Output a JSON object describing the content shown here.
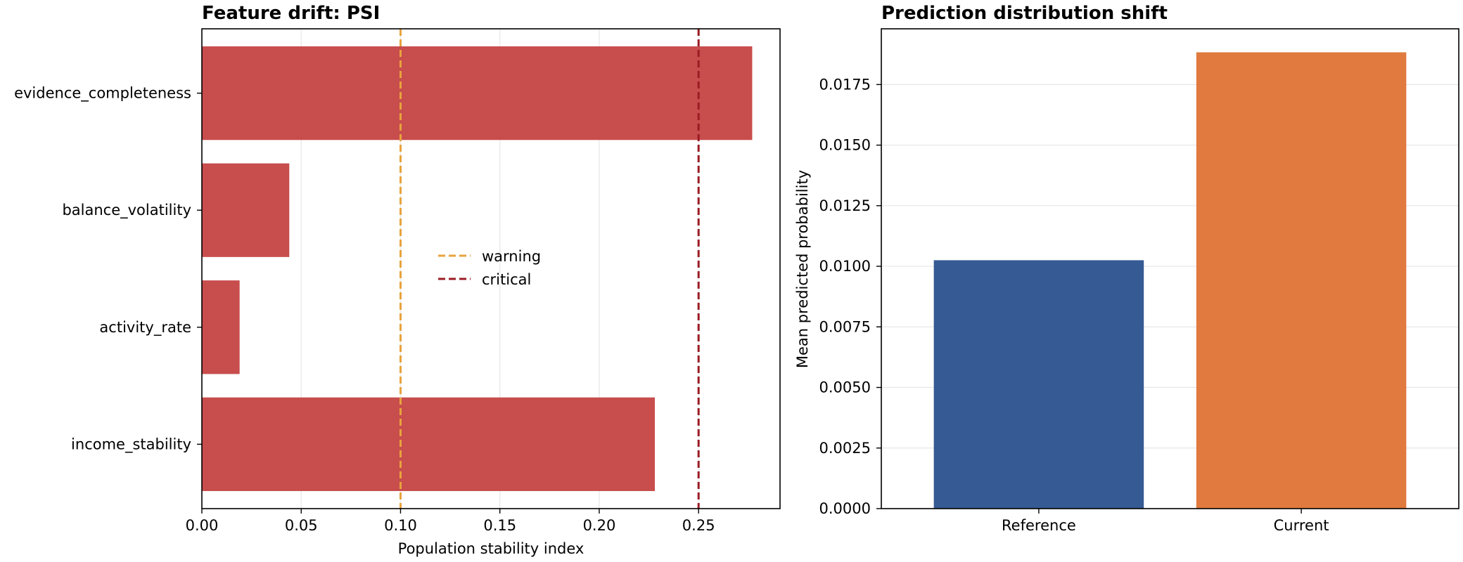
{
  "chart_data": [
    {
      "type": "bar",
      "orientation": "horizontal",
      "title": "Feature drift: PSI",
      "xlabel": "Population stability index",
      "ylabel": "",
      "categories": [
        "income_stability",
        "activity_rate",
        "balance_volatility",
        "evidence_completeness"
      ],
      "values": [
        0.228,
        0.019,
        0.044,
        0.277
      ],
      "xlim": [
        0,
        0.291
      ],
      "xticks": [
        "0.00",
        "0.05",
        "0.10",
        "0.15",
        "0.20",
        "0.25"
      ],
      "bar_color": "#c84d4d",
      "grid": "x",
      "reference_lines": [
        {
          "name": "warning",
          "value": 0.1,
          "color": "#e8a33d",
          "style": "dashed"
        },
        {
          "name": "critical",
          "value": 0.25,
          "color": "#9b1c24",
          "style": "dashed"
        }
      ],
      "legend": {
        "placement": "center",
        "entries": [
          "warning",
          "critical"
        ]
      }
    },
    {
      "type": "bar",
      "orientation": "vertical",
      "title": "Prediction distribution shift",
      "xlabel": "",
      "ylabel": "Mean predicted probability",
      "categories": [
        "Reference",
        "Current"
      ],
      "values": [
        0.01025,
        0.01883
      ],
      "ylim": [
        0,
        0.0198
      ],
      "yticks": [
        "0.0000",
        "0.0025",
        "0.0050",
        "0.0075",
        "0.0100",
        "0.0125",
        "0.0150",
        "0.0175"
      ],
      "bar_colors": [
        "#365a93",
        "#e07a3e"
      ],
      "grid": "y"
    }
  ]
}
